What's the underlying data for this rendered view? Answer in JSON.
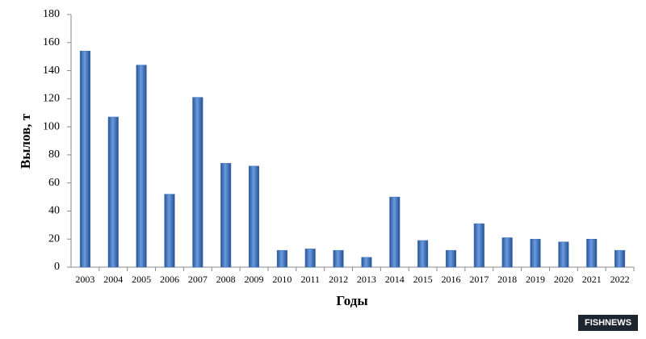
{
  "chart_data": {
    "type": "bar",
    "x_label": "Годы",
    "y_label": "Вылов, т",
    "watermark": "FISHNEWS",
    "categories": [
      "2003",
      "2004",
      "2005",
      "2006",
      "2007",
      "2008",
      "2009",
      "2010",
      "2011",
      "2012",
      "2013",
      "2014",
      "2015",
      "2016",
      "2017",
      "2018",
      "2019",
      "2020",
      "2021",
      "2022"
    ],
    "values": [
      154,
      107,
      144,
      52,
      121,
      74,
      72,
      12,
      13,
      12,
      7,
      50,
      19,
      12,
      31,
      21,
      20,
      18,
      20,
      12
    ],
    "color": "#3a6db5",
    "ylim": [
      0,
      180
    ],
    "yticks": [
      0,
      20,
      40,
      60,
      80,
      100,
      120,
      140,
      160,
      180
    ],
    "grid": false
  }
}
